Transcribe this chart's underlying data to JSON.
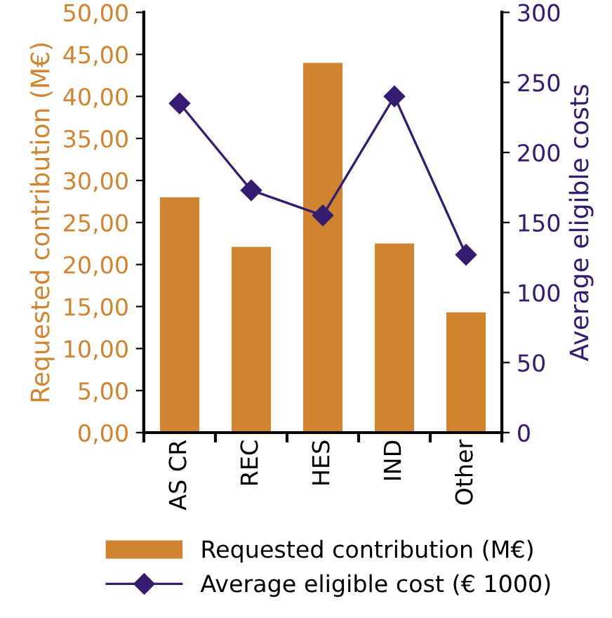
{
  "chart_data": {
    "type": "bar",
    "categories": [
      "AS CR",
      "REC",
      "HES",
      "IND",
      "Other"
    ],
    "ylabel": "Requested contribution (M€)",
    "y2label": "Average eligible costs",
    "ylim": [
      0,
      50
    ],
    "yticks": [
      {
        "value": 0,
        "label": "0,00"
      },
      {
        "value": 5,
        "label": "5,00"
      },
      {
        "value": 10,
        "label": "10,00"
      },
      {
        "value": 15,
        "label": "15,00"
      },
      {
        "value": 20,
        "label": "20,00"
      },
      {
        "value": 25,
        "label": "25,00"
      },
      {
        "value": 30,
        "label": "30,00"
      },
      {
        "value": 35,
        "label": "35,00"
      },
      {
        "value": 40,
        "label": "40,00"
      },
      {
        "value": 45,
        "label": "45,00"
      },
      {
        "value": 50,
        "label": "50,00"
      }
    ],
    "y2lim": [
      0,
      300
    ],
    "y2ticks": [
      0,
      50,
      100,
      150,
      200,
      250,
      300
    ],
    "series": [
      {
        "name": "Requested contribution (M€)",
        "color": "#d08432",
        "values": [
          28.0,
          22.1,
          44.0,
          22.5,
          14.3
        ]
      },
      {
        "name": "Average eligible cost (€ 1000)",
        "type": "line",
        "axis": "y2",
        "color": "#341c6e",
        "marker": "diamond",
        "values": [
          235,
          173,
          155,
          240,
          127
        ]
      }
    ],
    "grid": false,
    "legend": "bottom"
  }
}
